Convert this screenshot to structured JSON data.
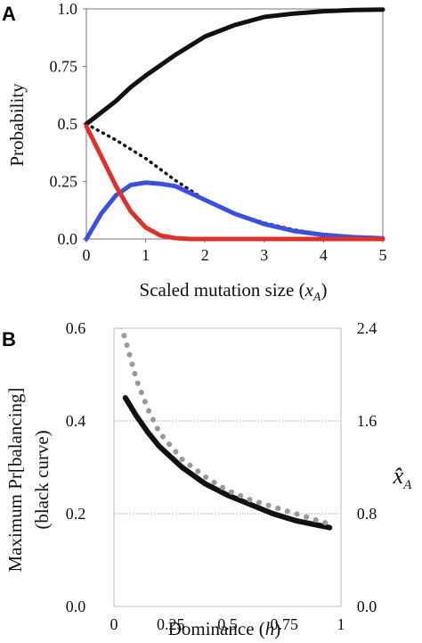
{
  "chart_data": [
    {
      "panel": "A",
      "type": "line",
      "xlabel_text": "Scaled mutation size (",
      "xlabel_var": "x",
      "xlabel_sub": "A",
      "xlabel_close": ")",
      "ylabel": "Probability",
      "xlim": [
        0,
        5
      ],
      "ylim": [
        0,
        1
      ],
      "xticks": [
        "0",
        "1",
        "2",
        "3",
        "4",
        "5"
      ],
      "yticks": [
        "0.0",
        "0.25",
        "0.5",
        "0.75",
        "1.0"
      ],
      "grid": false,
      "series": [
        {
          "color": "#111111",
          "style": "solid",
          "x": [
            0,
            0.25,
            0.5,
            0.75,
            1,
            1.5,
            2,
            2.5,
            3,
            3.5,
            4,
            4.5,
            5
          ],
          "y": [
            0.5,
            0.55,
            0.6,
            0.66,
            0.71,
            0.8,
            0.88,
            0.93,
            0.965,
            0.98,
            0.99,
            0.995,
            0.997
          ]
        },
        {
          "color": "#111111",
          "style": "dotted",
          "x": [
            0,
            0.5,
            1,
            1.5,
            2,
            2.5,
            3,
            3.5,
            4,
            4.5,
            5
          ],
          "y": [
            0.5,
            0.43,
            0.35,
            0.255,
            0.17,
            0.11,
            0.07,
            0.04,
            0.02,
            0.01,
            0.005
          ]
        },
        {
          "color": "#3b4fe0",
          "style": "solid",
          "x": [
            0,
            0.25,
            0.5,
            0.75,
            1,
            1.25,
            1.5,
            2,
            2.5,
            3,
            3.5,
            4,
            4.5,
            5
          ],
          "y": [
            0.0,
            0.11,
            0.19,
            0.235,
            0.245,
            0.24,
            0.23,
            0.17,
            0.11,
            0.065,
            0.035,
            0.018,
            0.008,
            0.003
          ]
        },
        {
          "color": "#e0302a",
          "style": "solid",
          "x": [
            0,
            0.25,
            0.5,
            0.75,
            1,
            1.25,
            1.5,
            1.75,
            2,
            3,
            4,
            5
          ],
          "y": [
            0.49,
            0.36,
            0.23,
            0.12,
            0.05,
            0.015,
            0.004,
            0.0,
            0.0,
            0.0,
            0.0,
            0.0
          ]
        }
      ]
    },
    {
      "panel": "B",
      "type": "line",
      "xlabel_text": "Dominance (",
      "xlabel_var": "h",
      "xlabel_close": ")",
      "ylabel_line1": "Maximum Pr[balancing]",
      "ylabel_line2": "(black curve)",
      "y2label_var": "x̂",
      "y2label_sub": "A",
      "xlim": [
        0,
        1
      ],
      "ylim": [
        0,
        0.6
      ],
      "y2lim": [
        0,
        2.4
      ],
      "xticks": [
        "0",
        "0.25",
        "0.5",
        "0.75",
        "1"
      ],
      "yticks": [
        "0.0",
        "0.2",
        "0.4",
        "0.6"
      ],
      "y2ticks": [
        "0.0",
        "0.8",
        "1.6",
        "2.4"
      ],
      "grid": "horizontal dotted",
      "series": [
        {
          "color": "#111111",
          "style": "solid",
          "axis": "left",
          "x": [
            0.05,
            0.1,
            0.15,
            0.2,
            0.3,
            0.4,
            0.5,
            0.6,
            0.7,
            0.8,
            0.9,
            0.95
          ],
          "y": [
            0.45,
            0.41,
            0.375,
            0.345,
            0.3,
            0.265,
            0.24,
            0.22,
            0.2,
            0.185,
            0.175,
            0.17
          ]
        },
        {
          "color": "#999999",
          "style": "dotted",
          "axis": "right",
          "x": [
            0.02,
            0.05,
            0.1,
            0.15,
            0.2,
            0.3,
            0.4,
            0.5,
            0.6,
            0.7,
            0.8,
            0.9,
            0.95
          ],
          "y": [
            2.5,
            2.3,
            1.95,
            1.7,
            1.5,
            1.27,
            1.12,
            1.0,
            0.92,
            0.86,
            0.8,
            0.74,
            0.71
          ]
        }
      ]
    }
  ]
}
